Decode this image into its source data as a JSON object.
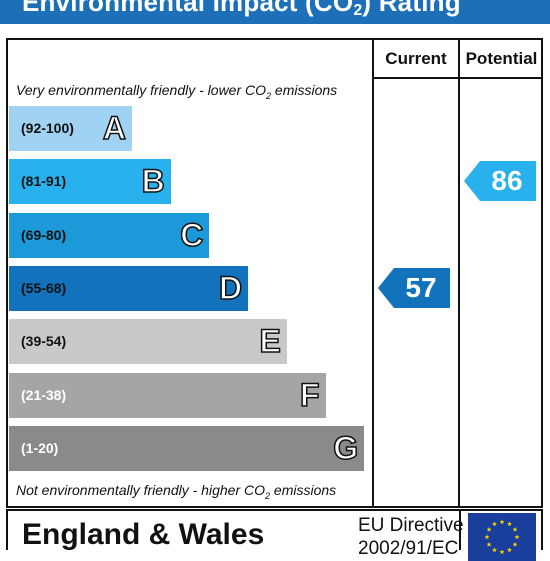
{
  "header": {
    "title_prefix": "Environmental Impact (CO",
    "title_sub": "2",
    "title_suffix": ") Rating"
  },
  "columns": {
    "current": "Current",
    "potential": "Potential"
  },
  "captions": {
    "top_prefix": "Very environmentally friendly - lower CO",
    "top_sub": "2",
    "top_suffix": " emissions",
    "bottom_prefix": "Not environmentally friendly - higher CO",
    "bottom_sub": "2",
    "bottom_suffix": " emissions"
  },
  "chart_data": {
    "type": "bar",
    "bands": [
      {
        "range": "(92-100)",
        "letter": "A",
        "min": 92,
        "max": 100,
        "color": "#9fd2f3",
        "text_color": "#111111"
      },
      {
        "range": "(81-91)",
        "letter": "B",
        "min": 81,
        "max": 91,
        "color": "#28b1ec",
        "text_color": "#111111"
      },
      {
        "range": "(69-80)",
        "letter": "C",
        "min": 69,
        "max": 80,
        "color": "#1c99d8",
        "text_color": "#111111"
      },
      {
        "range": "(55-68)",
        "letter": "D",
        "min": 55,
        "max": 68,
        "color": "#1272bc",
        "text_color": "#111111"
      },
      {
        "range": "(39-54)",
        "letter": "E",
        "min": 39,
        "max": 54,
        "color": "#c9c9c9",
        "text_color": "#111111"
      },
      {
        "range": "(21-38)",
        "letter": "F",
        "min": 21,
        "max": 38,
        "color": "#a5a5a5",
        "text_color": "#ffffff"
      },
      {
        "range": "(1-20)",
        "letter": "G",
        "min": 1,
        "max": 20,
        "color": "#8a8a8a",
        "text_color": "#ffffff"
      }
    ],
    "current": {
      "value": 57,
      "band": "D",
      "color": "#1272bc"
    },
    "potential": {
      "value": 86,
      "band": "B",
      "color": "#28b1ec"
    }
  },
  "footer": {
    "region": "England & Wales",
    "directive_line1": "EU Directive",
    "directive_line2": "2002/91/EC",
    "flag_colors": {
      "field": "#1a3e9b",
      "stars": "#f5d300"
    }
  }
}
